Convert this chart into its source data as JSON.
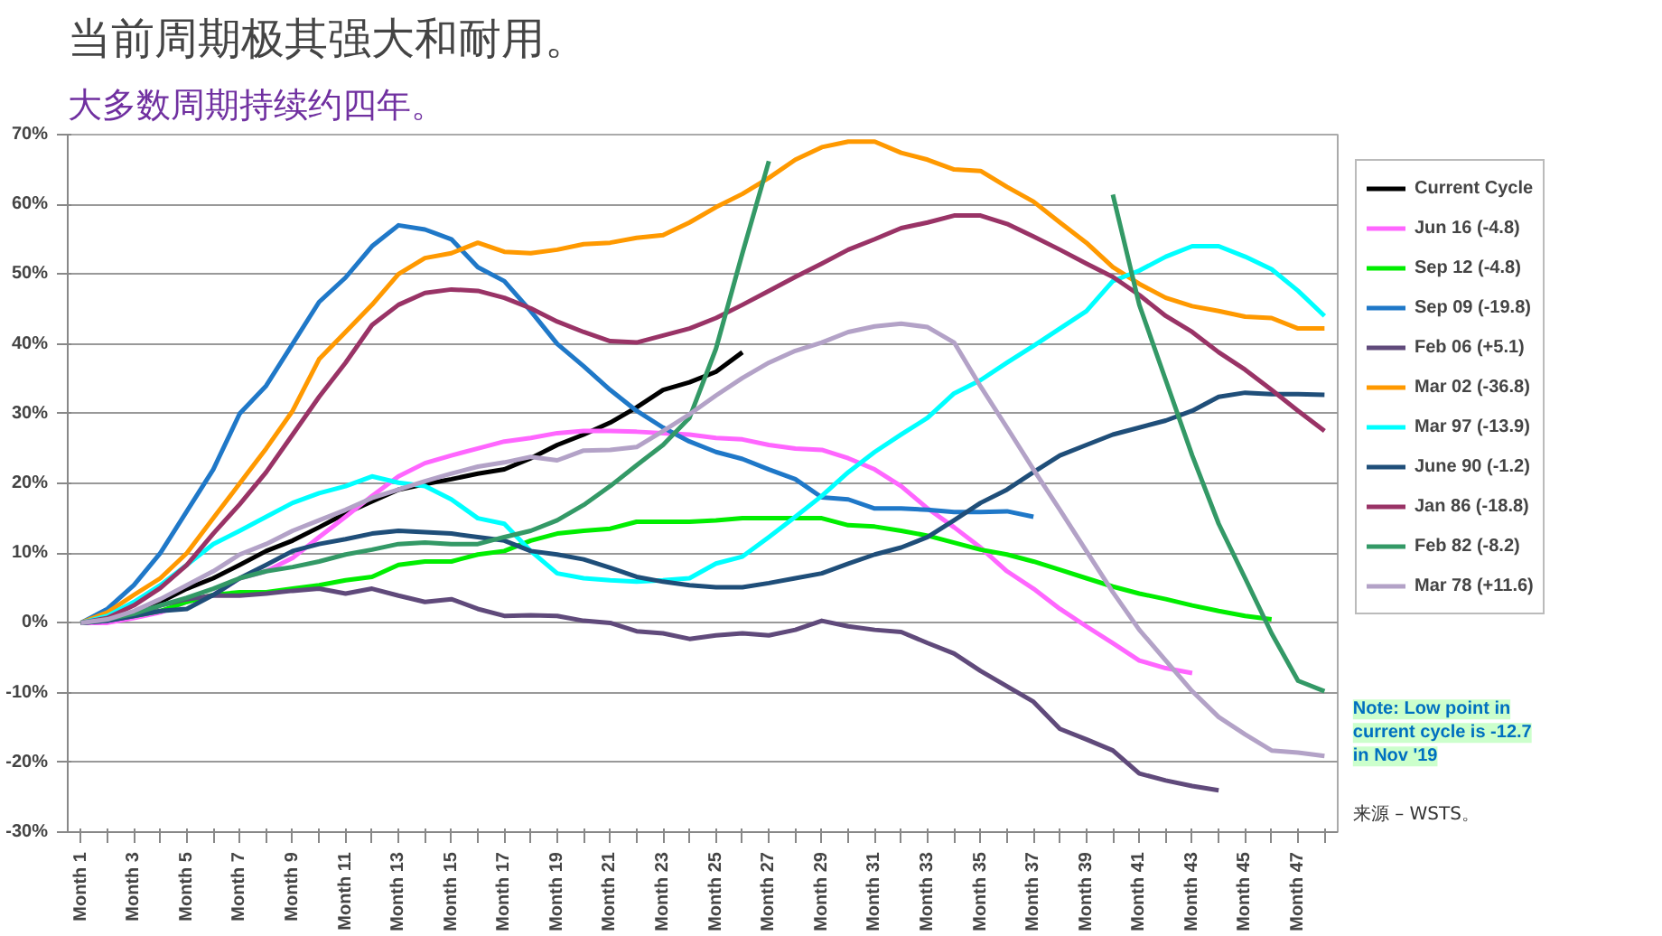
{
  "chart_data": {
    "type": "line",
    "title": "当前周期极其强大和耐用。",
    "subtitle": "大多数周期持续约四年。",
    "annotations": [
      "Note: Low point in\ncurrent cycle is -12.7\nin Nov '19",
      "来源 – WSTS。"
    ],
    "categories": [
      "Month 1",
      null,
      "Month 3",
      null,
      "Month 5",
      null,
      "Month 7",
      null,
      "Month 9",
      null,
      "Month 11",
      null,
      "Month 13",
      null,
      "Month 15",
      null,
      "Month 17",
      null,
      "Month 19",
      null,
      "Month 21",
      null,
      "Month 23",
      null,
      "Month 25",
      null,
      "Month 27",
      null,
      "Month 29",
      null,
      "Month 31",
      null,
      "Month 33",
      null,
      "Month 35",
      null,
      "Month 37",
      null,
      "Month 39",
      null,
      "Month 41",
      null,
      "Month 43",
      null,
      "Month 45",
      null,
      "Month 47",
      null
    ],
    "ylim": [
      -30,
      70
    ],
    "yticks": [
      {
        "value": -30,
        "label": "-30%"
      },
      {
        "value": -20,
        "label": "-20%"
      },
      {
        "value": -10,
        "label": "-10%"
      },
      {
        "value": 0,
        "label": "0%"
      },
      {
        "value": 10,
        "label": "10%"
      },
      {
        "value": 20,
        "label": "20%"
      },
      {
        "value": 30,
        "label": "30%"
      },
      {
        "value": 40,
        "label": "40%"
      },
      {
        "value": 50,
        "label": "50%"
      },
      {
        "value": 60,
        "label": "60%"
      },
      {
        "value": 70,
        "label": "70%"
      }
    ],
    "grid": "y",
    "legend": "right",
    "marker": "none",
    "line_style": "solid",
    "series": [
      {
        "name": "Current Cycle",
        "color": "#000000",
        "values": [
          0,
          0.3,
          1.5,
          3,
          4.9,
          6.4,
          8.3,
          10.3,
          11.8,
          13.7,
          15.7,
          17.4,
          19.1,
          19.9,
          20.6,
          21.4,
          22,
          23.6,
          25.5,
          27,
          28.7,
          30.9,
          33.4,
          34.5,
          36,
          38.8,
          null,
          null,
          null,
          null,
          null,
          null,
          null,
          null,
          null,
          null,
          null,
          null,
          null,
          null,
          null,
          null,
          null,
          null,
          null,
          null,
          null,
          null
        ]
      },
      {
        "name": "Jun 16 (-4.8)",
        "color": "#ff66ff",
        "values": [
          0,
          0,
          0.7,
          1.5,
          3,
          4,
          6.4,
          7.4,
          9.3,
          12.3,
          15.2,
          18.2,
          21,
          22.9,
          24,
          25,
          26,
          26.5,
          27.2,
          27.5,
          27.5,
          27.4,
          27.2,
          27,
          26.5,
          26.3,
          25.5,
          25,
          24.8,
          23.6,
          22,
          19.6,
          16.4,
          13.7,
          10.8,
          7.4,
          4.9,
          2,
          -0.5,
          -2.9,
          -5.4,
          -6.5,
          -7.2,
          null,
          null,
          null,
          null,
          null
        ]
      },
      {
        "name": "Sep 12 (-4.8)",
        "color": "#00ee00",
        "values": [
          null,
          null,
          1,
          1.7,
          3,
          4,
          4.4,
          4.4,
          4.9,
          5.4,
          6.1,
          6.6,
          8.3,
          8.8,
          8.8,
          9.8,
          10.3,
          11.8,
          12.8,
          13.2,
          13.5,
          14.5,
          14.5,
          14.5,
          14.7,
          15,
          15,
          15,
          15,
          14,
          13.8,
          13.2,
          12.5,
          11.5,
          10.5,
          9.8,
          8.8,
          7.6,
          6.4,
          5.2,
          4.2,
          3.4,
          2.5,
          1.7,
          1,
          0.5,
          null,
          null
        ]
      },
      {
        "name": "Sep 09 (-19.8)",
        "color": "#1f78c8",
        "values": [
          0,
          2,
          5.4,
          10,
          16,
          22,
          30,
          34,
          40,
          46,
          49.5,
          54,
          57,
          56.4,
          55,
          51,
          49,
          44.7,
          40,
          36.8,
          33.4,
          30.4,
          28,
          26,
          24.5,
          23.5,
          22,
          20.6,
          18,
          17.7,
          16.4,
          16.4,
          16.2,
          15.9,
          15.9,
          16,
          15.2,
          null,
          null,
          null,
          null,
          null,
          null,
          null,
          null,
          null,
          null,
          null
        ]
      },
      {
        "name": "Feb 06 (+5.1)",
        "color": "#604a7b",
        "values": [
          0,
          0.3,
          1,
          2.5,
          3.4,
          3.9,
          3.9,
          4.2,
          4.6,
          4.9,
          4.2,
          4.9,
          3.9,
          3,
          3.4,
          2,
          1,
          1.1,
          1,
          0.3,
          0,
          -1.2,
          -1.5,
          -2.3,
          -1.8,
          -1.5,
          -1.8,
          -1,
          0.3,
          -0.5,
          -1,
          -1.3,
          -2.9,
          -4.4,
          -6.9,
          -9.1,
          -11.3,
          -15.2,
          -16.7,
          -18.3,
          -21.6,
          -22.6,
          -23.4,
          -24,
          null,
          null,
          null,
          null
        ]
      },
      {
        "name": "Mar 02 (-36.8)",
        "color": "#ff9900",
        "values": [
          0,
          1.5,
          4,
          6.4,
          10,
          15,
          20,
          25,
          30.4,
          37.8,
          41.7,
          45.6,
          50,
          52.3,
          53,
          54.5,
          53.2,
          53,
          53.5,
          54.3,
          54.5,
          55.2,
          55.6,
          57.4,
          59.6,
          61.5,
          63.8,
          66.4,
          68.2,
          69,
          69,
          67.4,
          66.4,
          65,
          64.8,
          62.5,
          60.4,
          57.4,
          54.5,
          51,
          48.6,
          46.6,
          45.4,
          44.7,
          43.9,
          43.7,
          42.2,
          42.2
        ]
      },
      {
        "name": "Mar 97 (-13.9)",
        "color": "#00ffff",
        "values": [
          0,
          1,
          3,
          5.4,
          8.3,
          11.3,
          13.2,
          15.2,
          17.2,
          18.6,
          19.6,
          21,
          20.1,
          19.6,
          17.7,
          15,
          14.2,
          10.3,
          7.1,
          6.4,
          6.1,
          5.9,
          6.1,
          6.4,
          8.5,
          9.5,
          12.3,
          15.2,
          18.2,
          21.6,
          24.5,
          27,
          29.4,
          32.9,
          34.8,
          37.3,
          39.7,
          42.2,
          44.7,
          49,
          50.5,
          52.5,
          54,
          54,
          52.5,
          50.7,
          47.6,
          44
        ]
      },
      {
        "name": "June 90 (-1.2)",
        "color": "#1f4e79",
        "values": [
          0,
          0.3,
          1,
          1.7,
          2,
          4,
          6.4,
          8.3,
          10.3,
          11.3,
          12,
          12.8,
          13.2,
          13,
          12.8,
          12.3,
          11.8,
          10.3,
          9.8,
          9.1,
          7.9,
          6.6,
          5.9,
          5.4,
          5.1,
          5.1,
          5.7,
          6.4,
          7.1,
          8.5,
          9.8,
          10.8,
          12.3,
          14.7,
          17.2,
          19.1,
          21.6,
          24,
          25.5,
          27,
          28,
          29,
          30.4,
          32.4,
          33,
          32.8,
          32.8,
          32.7
        ]
      },
      {
        "name": "Jan 86 (-18.8)",
        "color": "#993366",
        "values": [
          0,
          0.7,
          2.5,
          5,
          8.3,
          12.8,
          17,
          21.6,
          27,
          32.4,
          37.3,
          42.7,
          45.6,
          47.3,
          47.8,
          47.6,
          46.6,
          45.1,
          43.2,
          41.7,
          40.4,
          40.2,
          41.2,
          42.2,
          43.7,
          45.6,
          47.6,
          49.6,
          51.5,
          53.5,
          55,
          56.6,
          57.4,
          58.4,
          58.4,
          57.2,
          55.4,
          53.5,
          51.5,
          49.6,
          47,
          44,
          41.7,
          38.8,
          36.3,
          33.4,
          30.4,
          27.5
        ]
      },
      {
        "name": "Feb 82 (-8.2)",
        "color": "#339966",
        "values": [
          0,
          0.5,
          1.3,
          2.5,
          3.6,
          4.9,
          6.4,
          7.4,
          8,
          8.8,
          9.8,
          10.5,
          11.3,
          11.5,
          11.3,
          11.3,
          12.3,
          13.2,
          14.7,
          16.9,
          19.6,
          22.6,
          25.5,
          29.4,
          39.3,
          53,
          66.2,
          null,
          null,
          null,
          null,
          null,
          null,
          null,
          null,
          null,
          null,
          null,
          null,
          61.4,
          45.6,
          34.8,
          24,
          14.2,
          6.4,
          -1.5,
          -8.3,
          -9.8
        ]
      },
      {
        "name": "Mar 78 (+11.6)",
        "color": "#b3a2c7",
        "values": [
          0,
          0.5,
          1.7,
          3.4,
          5.4,
          7.4,
          9.8,
          11.3,
          13.2,
          14.7,
          16.2,
          17.9,
          19.1,
          20.3,
          21.4,
          22.4,
          23,
          23.8,
          23.3,
          24.7,
          24.8,
          25.2,
          27.5,
          29.9,
          32.6,
          35.1,
          37.3,
          39,
          40.2,
          41.7,
          42.5,
          42.9,
          42.4,
          40.2,
          33.9,
          28,
          22,
          16.2,
          10.3,
          4.4,
          -1,
          -5.4,
          -9.8,
          -13.5,
          -16,
          -18.3,
          -18.6,
          -19.1
        ]
      }
    ]
  }
}
